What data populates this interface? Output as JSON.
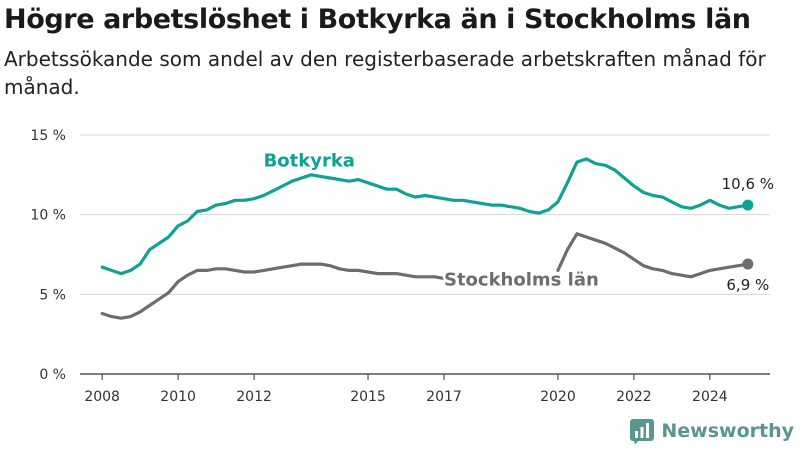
{
  "title": "Högre arbetslöshet i Botkyrka än i Stockholms län",
  "subtitle": "Arbetssökande som andel av den registerbaserade arbetskraften månad för månad.",
  "brand": {
    "name": "Newsworthy",
    "color": "#4e8f88"
  },
  "chart_data": {
    "type": "line",
    "xlim": [
      "2007-06",
      "2025-08"
    ],
    "ylim": [
      0,
      15
    ],
    "yticks": [
      0,
      5,
      10,
      15
    ],
    "ytick_labels": [
      "0 %",
      "5 %",
      "10 %",
      "15 %"
    ],
    "xticks": [
      "2008",
      "2010",
      "2012",
      "2015",
      "2017",
      "2020",
      "2022",
      "2024"
    ],
    "grid": true,
    "series": [
      {
        "name": "Botkyrka",
        "color": "#0fa193",
        "end_label": "10,6 %",
        "points": [
          [
            "2008-01",
            6.7
          ],
          [
            "2008-04",
            6.5
          ],
          [
            "2008-07",
            6.3
          ],
          [
            "2008-10",
            6.5
          ],
          [
            "2009-01",
            6.9
          ],
          [
            "2009-04",
            7.8
          ],
          [
            "2009-07",
            8.2
          ],
          [
            "2009-10",
            8.6
          ],
          [
            "2010-01",
            9.3
          ],
          [
            "2010-04",
            9.6
          ],
          [
            "2010-07",
            10.2
          ],
          [
            "2010-10",
            10.3
          ],
          [
            "2011-01",
            10.6
          ],
          [
            "2011-04",
            10.7
          ],
          [
            "2011-07",
            10.9
          ],
          [
            "2011-10",
            10.9
          ],
          [
            "2012-01",
            11.0
          ],
          [
            "2012-04",
            11.2
          ],
          [
            "2012-07",
            11.5
          ],
          [
            "2012-10",
            11.8
          ],
          [
            "2013-01",
            12.1
          ],
          [
            "2013-04",
            12.3
          ],
          [
            "2013-07",
            12.5
          ],
          [
            "2013-10",
            12.4
          ],
          [
            "2014-01",
            12.3
          ],
          [
            "2014-04",
            12.2
          ],
          [
            "2014-07",
            12.1
          ],
          [
            "2014-10",
            12.2
          ],
          [
            "2015-01",
            12.0
          ],
          [
            "2015-04",
            11.8
          ],
          [
            "2015-07",
            11.6
          ],
          [
            "2015-10",
            11.6
          ],
          [
            "2016-01",
            11.3
          ],
          [
            "2016-04",
            11.1
          ],
          [
            "2016-07",
            11.2
          ],
          [
            "2016-10",
            11.1
          ],
          [
            "2017-01",
            11.0
          ],
          [
            "2017-04",
            10.9
          ],
          [
            "2017-07",
            10.9
          ],
          [
            "2017-10",
            10.8
          ],
          [
            "2018-01",
            10.7
          ],
          [
            "2018-04",
            10.6
          ],
          [
            "2018-07",
            10.6
          ],
          [
            "2018-10",
            10.5
          ],
          [
            "2019-01",
            10.4
          ],
          [
            "2019-04",
            10.2
          ],
          [
            "2019-07",
            10.1
          ],
          [
            "2019-10",
            10.3
          ],
          [
            "2020-01",
            10.8
          ],
          [
            "2020-04",
            12.0
          ],
          [
            "2020-07",
            13.3
          ],
          [
            "2020-10",
            13.5
          ],
          [
            "2021-01",
            13.2
          ],
          [
            "2021-04",
            13.1
          ],
          [
            "2021-07",
            12.8
          ],
          [
            "2021-10",
            12.3
          ],
          [
            "2022-01",
            11.8
          ],
          [
            "2022-04",
            11.4
          ],
          [
            "2022-07",
            11.2
          ],
          [
            "2022-10",
            11.1
          ],
          [
            "2023-01",
            10.8
          ],
          [
            "2023-04",
            10.5
          ],
          [
            "2023-07",
            10.4
          ],
          [
            "2023-10",
            10.6
          ],
          [
            "2024-01",
            10.9
          ],
          [
            "2024-04",
            10.6
          ],
          [
            "2024-07",
            10.4
          ],
          [
            "2024-10",
            10.5
          ],
          [
            "2025-01",
            10.6
          ]
        ]
      },
      {
        "name": "Stockholms län",
        "color": "#6d6d6d",
        "end_label": "6,9 %",
        "gap_after": "2017-02",
        "points": [
          [
            "2008-01",
            3.8
          ],
          [
            "2008-04",
            3.6
          ],
          [
            "2008-07",
            3.5
          ],
          [
            "2008-10",
            3.6
          ],
          [
            "2009-01",
            3.9
          ],
          [
            "2009-04",
            4.3
          ],
          [
            "2009-07",
            4.7
          ],
          [
            "2009-10",
            5.1
          ],
          [
            "2010-01",
            5.8
          ],
          [
            "2010-04",
            6.2
          ],
          [
            "2010-07",
            6.5
          ],
          [
            "2010-10",
            6.5
          ],
          [
            "2011-01",
            6.6
          ],
          [
            "2011-04",
            6.6
          ],
          [
            "2011-07",
            6.5
          ],
          [
            "2011-10",
            6.4
          ],
          [
            "2012-01",
            6.4
          ],
          [
            "2012-04",
            6.5
          ],
          [
            "2012-07",
            6.6
          ],
          [
            "2012-10",
            6.7
          ],
          [
            "2013-01",
            6.8
          ],
          [
            "2013-04",
            6.9
          ],
          [
            "2013-07",
            6.9
          ],
          [
            "2013-10",
            6.9
          ],
          [
            "2014-01",
            6.8
          ],
          [
            "2014-04",
            6.6
          ],
          [
            "2014-07",
            6.5
          ],
          [
            "2014-10",
            6.5
          ],
          [
            "2015-01",
            6.4
          ],
          [
            "2015-04",
            6.3
          ],
          [
            "2015-07",
            6.3
          ],
          [
            "2015-10",
            6.3
          ],
          [
            "2016-01",
            6.2
          ],
          [
            "2016-04",
            6.1
          ],
          [
            "2016-07",
            6.1
          ],
          [
            "2016-10",
            6.1
          ],
          [
            "2017-01",
            6.0
          ],
          [
            "2017-02",
            6.0
          ],
          [
            "2020-01",
            6.5
          ],
          [
            "2020-04",
            7.8
          ],
          [
            "2020-07",
            8.8
          ],
          [
            "2020-10",
            8.6
          ],
          [
            "2021-01",
            8.4
          ],
          [
            "2021-04",
            8.2
          ],
          [
            "2021-07",
            7.9
          ],
          [
            "2021-10",
            7.6
          ],
          [
            "2022-01",
            7.2
          ],
          [
            "2022-04",
            6.8
          ],
          [
            "2022-07",
            6.6
          ],
          [
            "2022-10",
            6.5
          ],
          [
            "2023-01",
            6.3
          ],
          [
            "2023-04",
            6.2
          ],
          [
            "2023-07",
            6.1
          ],
          [
            "2023-10",
            6.3
          ],
          [
            "2024-01",
            6.5
          ],
          [
            "2024-04",
            6.6
          ],
          [
            "2024-07",
            6.7
          ],
          [
            "2024-10",
            6.8
          ],
          [
            "2025-01",
            6.9
          ]
        ]
      }
    ]
  }
}
